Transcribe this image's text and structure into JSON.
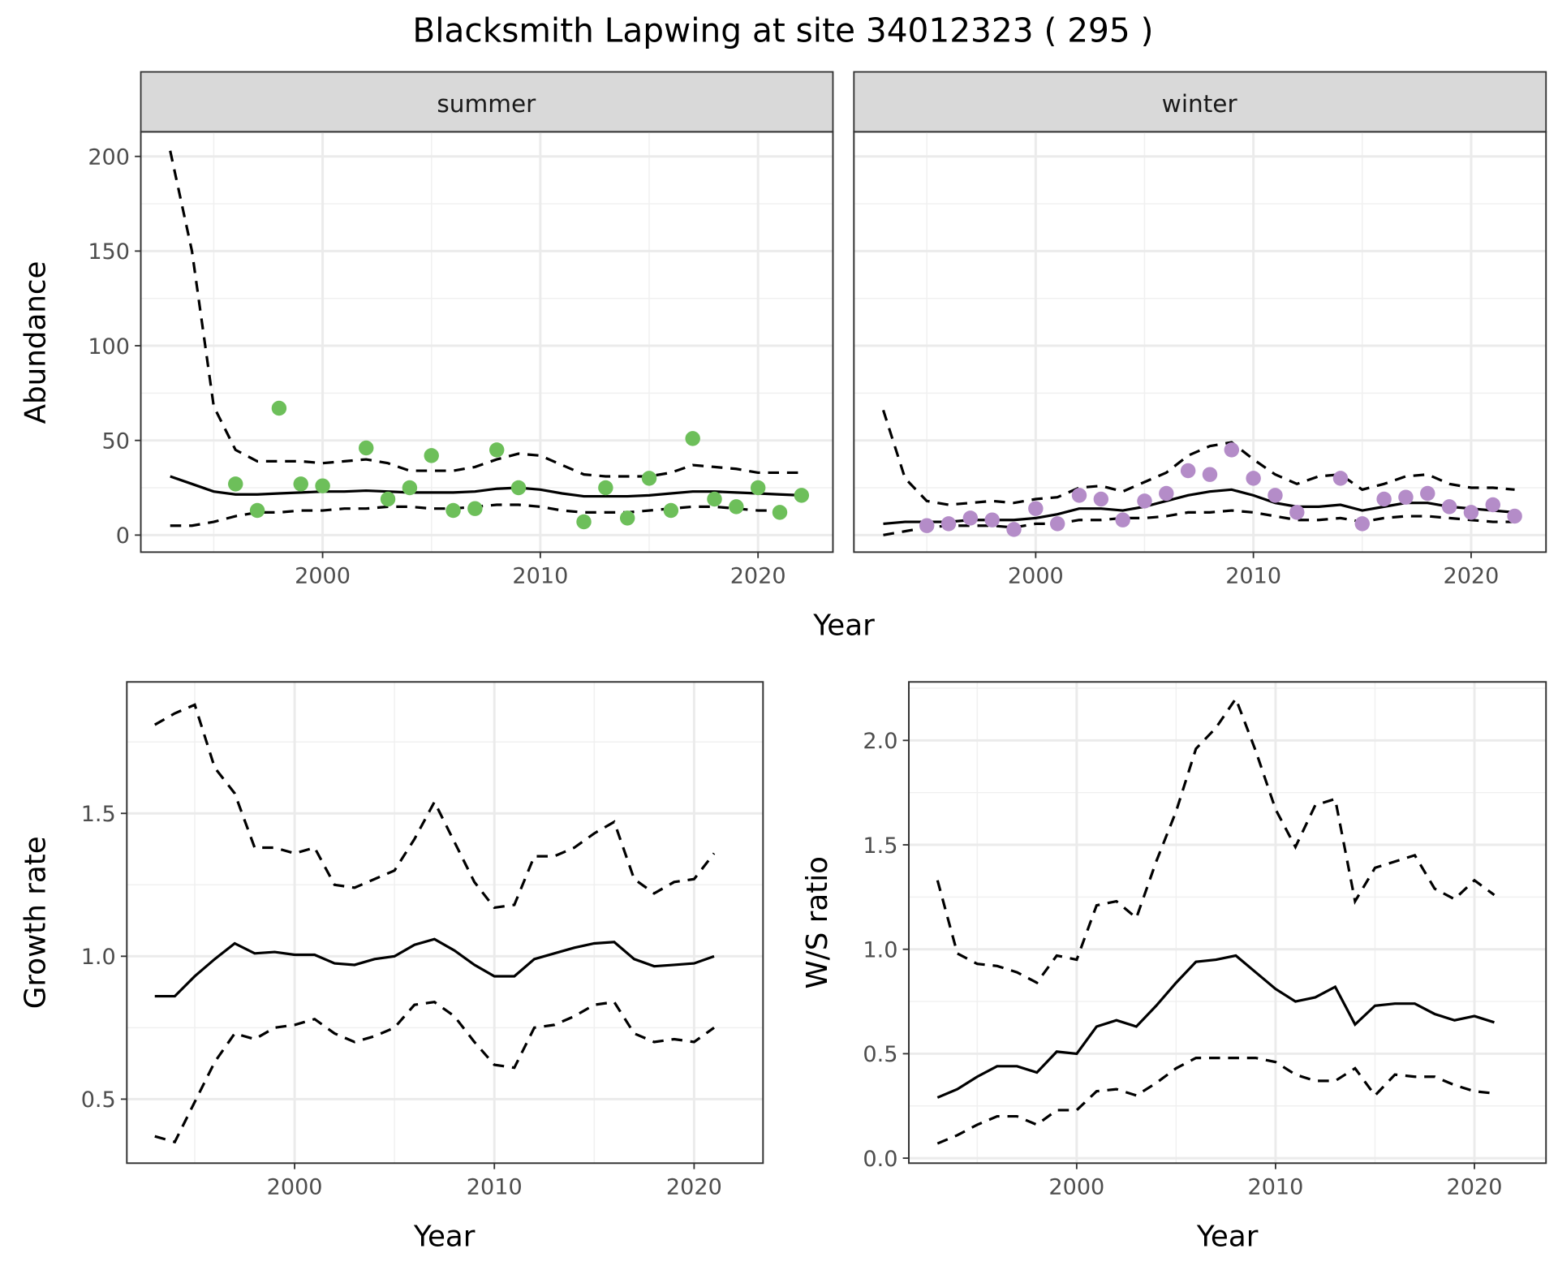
{
  "title": "Blacksmith Lapwing at site 34012323 ( 295 )",
  "chart_data": [
    {
      "type": "line",
      "facet": "summer",
      "xlabel": "Year",
      "ylabel": "Abundance",
      "xlim": [
        1991.65,
        2023.44
      ],
      "ylim": [
        -9,
        213
      ],
      "xticks": [
        2000,
        2010,
        2020
      ],
      "yticks": [
        0,
        50,
        100,
        150,
        200
      ],
      "grid": true,
      "point_color": "#6dbf5a",
      "points": {
        "x": [
          1996,
          1997,
          1998,
          1999,
          2000,
          2002,
          2003,
          2004,
          2005,
          2006,
          2007,
          2008,
          2009,
          2012,
          2013,
          2014,
          2015,
          2016,
          2017,
          2018,
          2019,
          2020,
          2021,
          2022
        ],
        "y": [
          27,
          13,
          67,
          27,
          26,
          46,
          19,
          25,
          42,
          13,
          14,
          45,
          25,
          7,
          25,
          9,
          30,
          13,
          51,
          19,
          15,
          25,
          12,
          21
        ]
      },
      "x": [
        1993,
        1994,
        1995,
        1996,
        1997,
        1998,
        1999,
        2000,
        2001,
        2002,
        2003,
        2004,
        2005,
        2006,
        2007,
        2008,
        2009,
        2010,
        2011,
        2012,
        2013,
        2014,
        2015,
        2016,
        2017,
        2018,
        2019,
        2020,
        2021,
        2022
      ],
      "mean": [
        31,
        27,
        23,
        21.5,
        21.5,
        22,
        22.5,
        23,
        23,
        23.5,
        23,
        22.5,
        22.5,
        22.5,
        23,
        24.5,
        25,
        24,
        22,
        20.5,
        20.5,
        20.5,
        21,
        22,
        23,
        23,
        22.5,
        22,
        21.5,
        21
      ],
      "upper": [
        203,
        150,
        68,
        45,
        39,
        39,
        39,
        38,
        39,
        40,
        38,
        34,
        34,
        34,
        36,
        40,
        43,
        42,
        37,
        32,
        31,
        31,
        31,
        33,
        37,
        36,
        35,
        33,
        33,
        33
      ],
      "lower": [
        5,
        5,
        7,
        10,
        12,
        12,
        13,
        13,
        14,
        14,
        15,
        15,
        14,
        14,
        15,
        16,
        16,
        15,
        13,
        12,
        12,
        12,
        13,
        14,
        15,
        15,
        14,
        13,
        13,
        null
      ]
    },
    {
      "type": "line",
      "facet": "winter",
      "xlim": [
        1991.65,
        2023.44
      ],
      "ylim": [
        -9,
        213
      ],
      "xticks": [
        2000,
        2010,
        2020
      ],
      "grid": true,
      "point_color": "#b48cc8",
      "points": {
        "x": [
          1995,
          1996,
          1997,
          1998,
          1999,
          2000,
          2001,
          2002,
          2003,
          2004,
          2005,
          2006,
          2007,
          2008,
          2009,
          2010,
          2011,
          2012,
          2014,
          2015,
          2016,
          2017,
          2018,
          2019,
          2020,
          2021,
          2022
        ],
        "y": [
          5,
          6,
          9,
          8,
          3,
          14,
          6,
          21,
          19,
          8,
          18,
          22,
          34,
          32,
          45,
          30,
          21,
          12,
          30,
          6,
          19,
          20,
          22,
          15,
          12,
          16,
          10
        ]
      },
      "x": [
        1993,
        1994,
        1995,
        1996,
        1997,
        1998,
        1999,
        2000,
        2001,
        2002,
        2003,
        2004,
        2005,
        2006,
        2007,
        2008,
        2009,
        2010,
        2011,
        2012,
        2013,
        2014,
        2015,
        2016,
        2017,
        2018,
        2019,
        2020,
        2021,
        2022
      ],
      "mean": [
        6,
        7,
        7,
        7,
        8,
        8,
        8,
        9,
        11,
        14,
        14,
        13,
        15,
        18,
        21,
        23,
        24,
        21,
        17,
        15,
        15,
        16,
        13,
        15,
        17,
        17,
        15,
        14,
        13,
        12
      ],
      "upper": [
        66,
        30,
        18,
        16,
        17,
        18,
        17,
        19,
        20,
        25,
        26,
        23,
        28,
        33,
        42,
        47,
        49,
        40,
        32,
        27,
        31,
        32,
        24,
        27,
        31,
        32,
        27,
        25,
        25,
        24
      ],
      "lower": [
        0,
        2,
        4,
        5,
        5,
        5,
        4,
        6,
        6,
        8,
        8,
        9,
        9,
        10,
        12,
        12,
        13,
        12,
        10,
        8,
        8,
        9,
        7,
        9,
        10,
        10,
        9,
        8,
        7,
        7
      ]
    },
    {
      "type": "line",
      "xlabel": "Year",
      "ylabel": "Growth rate",
      "xlim": [
        1991.6,
        2023.45
      ],
      "ylim": [
        0.276,
        1.96
      ],
      "xticks": [
        2000,
        2010,
        2020
      ],
      "yticks": [
        0.5,
        1.0,
        1.5
      ],
      "grid": true,
      "x": [
        1993,
        1994,
        1995,
        1996,
        1997,
        1998,
        1999,
        2000,
        2001,
        2002,
        2003,
        2004,
        2005,
        2006,
        2007,
        2008,
        2009,
        2010,
        2011,
        2012,
        2013,
        2014,
        2015,
        2016,
        2017,
        2018,
        2019,
        2020,
        2021
      ],
      "mean": [
        0.86,
        0.86,
        0.93,
        0.99,
        1.045,
        1.01,
        1.015,
        1.005,
        1.005,
        0.975,
        0.97,
        0.99,
        1.0,
        1.04,
        1.06,
        1.02,
        0.97,
        0.93,
        0.93,
        0.99,
        1.01,
        1.03,
        1.045,
        1.05,
        0.99,
        0.965,
        0.97,
        0.975,
        1.0
      ],
      "upper": [
        1.81,
        1.85,
        1.88,
        1.66,
        1.57,
        1.38,
        1.38,
        1.36,
        1.38,
        1.25,
        1.24,
        1.27,
        1.3,
        1.41,
        1.54,
        1.4,
        1.26,
        1.17,
        1.18,
        1.35,
        1.35,
        1.38,
        1.43,
        1.47,
        1.27,
        1.22,
        1.26,
        1.27,
        1.36
      ],
      "lower": [
        0.37,
        0.35,
        0.49,
        0.63,
        0.73,
        0.71,
        0.75,
        0.76,
        0.78,
        0.73,
        0.7,
        0.72,
        0.75,
        0.83,
        0.84,
        0.79,
        0.7,
        0.62,
        0.61,
        0.75,
        0.76,
        0.79,
        0.83,
        0.84,
        0.73,
        0.7,
        0.71,
        0.7,
        0.75
      ]
    },
    {
      "type": "line",
      "xlabel": "Year",
      "ylabel": "W/S ratio",
      "xlim": [
        1991.56,
        2023.6
      ],
      "ylim": [
        -0.024,
        2.28
      ],
      "xticks": [
        2000,
        2010,
        2020
      ],
      "yticks": [
        0.0,
        0.5,
        1.0,
        1.5,
        2.0
      ],
      "grid": true,
      "x": [
        1993,
        1994,
        1995,
        1996,
        1997,
        1998,
        1999,
        2000,
        2001,
        2002,
        2003,
        2004,
        2005,
        2006,
        2007,
        2008,
        2009,
        2010,
        2011,
        2012,
        2013,
        2014,
        2015,
        2016,
        2017,
        2018,
        2019,
        2020,
        2021
      ],
      "mean": [
        0.29,
        0.33,
        0.39,
        0.44,
        0.44,
        0.41,
        0.51,
        0.5,
        0.63,
        0.66,
        0.63,
        0.73,
        0.84,
        0.94,
        0.95,
        0.97,
        0.89,
        0.81,
        0.75,
        0.77,
        0.82,
        0.64,
        0.73,
        0.74,
        0.74,
        0.69,
        0.66,
        0.68,
        0.65
      ],
      "upper": [
        1.33,
        0.98,
        0.93,
        0.92,
        0.89,
        0.84,
        0.97,
        0.95,
        1.21,
        1.23,
        1.15,
        1.42,
        1.66,
        1.96,
        2.06,
        2.2,
        1.95,
        1.67,
        1.49,
        1.69,
        1.72,
        1.23,
        1.39,
        1.42,
        1.45,
        1.29,
        1.24,
        1.33,
        1.26
      ],
      "lower": [
        0.07,
        0.11,
        0.16,
        0.2,
        0.2,
        0.16,
        0.23,
        0.23,
        0.32,
        0.33,
        0.3,
        0.36,
        0.43,
        0.48,
        0.48,
        0.48,
        0.48,
        0.46,
        0.4,
        0.37,
        0.37,
        0.43,
        0.3,
        0.4,
        0.39,
        0.39,
        0.35,
        0.32,
        0.31
      ]
    }
  ],
  "labels": {
    "top_xlabel": "Year",
    "top_ylabel": "Abundance",
    "facet_summer": "summer",
    "facet_winter": "winter",
    "bl_xlabel": "Year",
    "bl_ylabel": "Growth rate",
    "br_xlabel": "Year",
    "br_ylabel": "W/S ratio"
  }
}
